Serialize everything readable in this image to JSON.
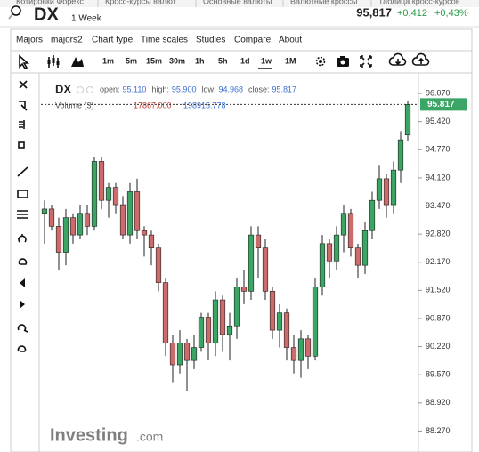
{
  "tabs": [
    "Котировки Форекс",
    "Кросс-курсы валют",
    "Основные валюты",
    "Валютные кроссы",
    "Таблица кросс-курсов"
  ],
  "header": {
    "symbol": "DX",
    "interval": "1 Week",
    "price": "95,817",
    "change": "+0,412",
    "change_pct": "+0,43%"
  },
  "menu": [
    "Majors",
    "majors2",
    "Chart type",
    "Time scales",
    "Studies",
    "Compare",
    "About"
  ],
  "intervals": [
    "1m",
    "5m",
    "15m",
    "30m",
    "1h",
    "5h",
    "1d",
    "1w",
    "1M"
  ],
  "watermark": {
    "brand": "Investing",
    "suffix": ".com"
  },
  "chart_data": {
    "type": "candlestick",
    "symbol": "DX",
    "legend": {
      "open_label": "open:",
      "open": "95.110",
      "high_label": "high:",
      "high": "95.900",
      "low_label": "low:",
      "low": "94.968",
      "close_label": "close:",
      "close": "95.817"
    },
    "volume": {
      "label": "Volume (3)",
      "value1": "17867.000",
      "value2": "198915.778"
    },
    "up_color": "#3aa564",
    "down_color": "#cc6b6b",
    "open": [
      93.3,
      93.4,
      93.0,
      92.4,
      93.2,
      92.8,
      93.3,
      93.0,
      94.5,
      93.6,
      93.9,
      93.5,
      92.8,
      93.8,
      92.9,
      92.8,
      92.5,
      91.7,
      90.3,
      89.8,
      90.3,
      89.9,
      90.2,
      90.9,
      90.3,
      91.3,
      90.5,
      90.7,
      91.6,
      91.5,
      92.8,
      92.5,
      91.5,
      90.6,
      91.0,
      90.2,
      89.9,
      90.4,
      90.0,
      91.6,
      92.6,
      92.2,
      92.8,
      93.3,
      92.5,
      92.1,
      92.9,
      93.6,
      94.1,
      93.5,
      94.3,
      95.11
    ],
    "high": [
      93.6,
      93.5,
      93.2,
      93.4,
      93.3,
      93.5,
      93.5,
      94.6,
      94.6,
      94.0,
      94.0,
      93.7,
      94.0,
      94.1,
      93.0,
      92.9,
      92.6,
      91.8,
      90.5,
      90.6,
      90.4,
      90.5,
      91.0,
      91.0,
      91.5,
      91.4,
      91.0,
      91.8,
      92.0,
      93.0,
      93.0,
      92.7,
      91.6,
      91.2,
      91.1,
      90.5,
      90.6,
      90.5,
      91.8,
      92.8,
      92.7,
      93.0,
      93.5,
      93.4,
      92.6,
      93.1,
      93.8,
      94.4,
      94.2,
      94.5,
      95.2,
      95.9
    ],
    "low": [
      92.6,
      92.9,
      92.0,
      92.1,
      92.6,
      92.7,
      92.8,
      92.9,
      93.4,
      93.2,
      93.3,
      92.7,
      92.6,
      92.7,
      92.3,
      92.1,
      91.5,
      90.0,
      89.4,
      89.6,
      89.2,
      89.7,
      90.1,
      89.9,
      90.0,
      90.1,
      89.9,
      90.4,
      91.2,
      91.3,
      91.8,
      91.3,
      90.4,
      90.2,
      89.9,
      89.6,
      89.5,
      89.7,
      89.9,
      91.4,
      91.8,
      92.0,
      92.4,
      92.3,
      91.8,
      91.9,
      92.7,
      93.4,
      93.2,
      93.3,
      94.0,
      94.968
    ],
    "close": [
      93.4,
      93.0,
      92.4,
      93.2,
      92.8,
      93.3,
      93.0,
      94.5,
      93.6,
      93.9,
      93.5,
      92.8,
      93.8,
      92.9,
      92.8,
      92.5,
      91.7,
      90.3,
      89.8,
      90.3,
      89.9,
      90.2,
      90.9,
      90.3,
      91.3,
      90.5,
      90.7,
      91.6,
      91.5,
      92.8,
      92.5,
      91.5,
      90.6,
      91.0,
      90.2,
      89.9,
      90.4,
      90.0,
      91.6,
      92.6,
      92.2,
      92.8,
      93.3,
      92.5,
      92.1,
      92.9,
      93.6,
      94.1,
      93.5,
      94.3,
      95.0,
      95.817
    ],
    "ylim": [
      87.95,
      96.4
    ],
    "yticks": [
      {
        "value": 96.07,
        "label": "96.070"
      },
      {
        "value": 95.42,
        "label": "95.420"
      },
      {
        "value": 94.77,
        "label": "94.770"
      },
      {
        "value": 94.12,
        "label": "94.120"
      },
      {
        "value": 93.47,
        "label": "93.470"
      },
      {
        "value": 92.82,
        "label": "92.820"
      },
      {
        "value": 92.17,
        "label": "92.170"
      },
      {
        "value": 91.52,
        "label": "91.520"
      },
      {
        "value": 90.87,
        "label": "90.870"
      },
      {
        "value": 90.22,
        "label": "90.220"
      },
      {
        "value": 89.57,
        "label": "89.570"
      },
      {
        "value": 88.92,
        "label": "88.920"
      },
      {
        "value": 88.27,
        "label": "88.270"
      }
    ]
  }
}
